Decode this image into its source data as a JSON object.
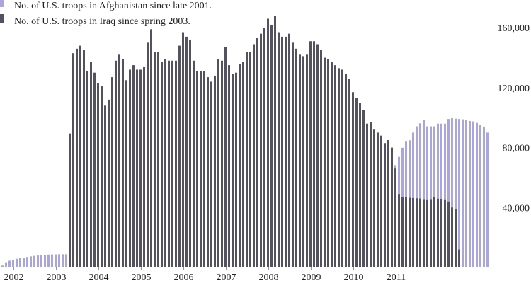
{
  "chart_data": {
    "type": "bar",
    "title": "",
    "xlabel": "",
    "ylabel": "",
    "ylim": [
      0,
      170000
    ],
    "y_ticks": [
      40000,
      80000,
      120000,
      160000
    ],
    "y_tick_labels": [
      "40,000",
      "80,000",
      "120,000",
      "160,000"
    ],
    "x_tick_labels": [
      "2002",
      "2003",
      "2004",
      "2005",
      "2006",
      "2007",
      "2008",
      "2009",
      "2010",
      "2011"
    ],
    "x_start": "2001-10",
    "legend_position": "top-left",
    "grid": false,
    "series": [
      {
        "name": "No. of U.S. troops in Afghanistan since late 2001.",
        "color": "#a9a6dc",
        "values": [
          1300,
          3000,
          4500,
          5200,
          5800,
          6200,
          6600,
          7000,
          7400,
          7700,
          8000,
          8200,
          8500,
          8600,
          8700,
          8700,
          8800,
          8800,
          8800,
          8900,
          9000,
          9100,
          9200,
          9300,
          9400,
          9600,
          9700,
          10000,
          10300,
          11000,
          11500,
          12000,
          12500,
          13000,
          13500,
          14000,
          17500,
          17300,
          17000,
          16800,
          16300,
          15800,
          15600,
          15800,
          16000,
          16200,
          16400,
          16600,
          17300,
          17600,
          17800,
          17400,
          17200,
          17000,
          17000,
          16900,
          16700,
          16800,
          17200,
          18500,
          20000,
          20200,
          20600,
          20800,
          20600,
          20200,
          19800,
          19700,
          19800,
          20400,
          20800,
          21400,
          22800,
          24500,
          24900,
          24200,
          24000,
          23800,
          23600,
          23800,
          23700,
          23500,
          24200,
          24000,
          24800,
          26300,
          28100,
          29800,
          31000,
          31500,
          31100,
          30500,
          31200,
          31400,
          31000,
          31100,
          30500,
          29900,
          30300,
          31500,
          34000,
          38000,
          47000,
          54000,
          58600,
          62000,
          62900,
          63200,
          65000,
          66300,
          68000,
          68300,
          73800,
          79900,
          84000,
          84900,
          90000,
          94200,
          96200,
          98600,
          94200,
          94200,
          94200,
          96000,
          96000,
          96000,
          99100,
          99600,
          99300,
          99100,
          98900,
          98400,
          97800,
          97500,
          96500,
          95000,
          94000,
          90000
        ]
      },
      {
        "name": "No. of U.S. troops in Iraq since spring 2003.",
        "color": "#55525f",
        "values": [
          null,
          null,
          null,
          null,
          null,
          null,
          null,
          null,
          null,
          null,
          null,
          null,
          null,
          null,
          null,
          null,
          null,
          null,
          null,
          89400,
          143000,
          146000,
          148000,
          145000,
          131000,
          137000,
          130000,
          123000,
          121000,
          108000,
          112000,
          127000,
          138000,
          142000,
          139000,
          125000,
          132000,
          135000,
          132000,
          132000,
          134000,
          150000,
          159000,
          144000,
          144000,
          137000,
          139000,
          138000,
          138000,
          138000,
          148000,
          157000,
          154000,
          152000,
          138000,
          131000,
          131000,
          131000,
          127000,
          124000,
          128000,
          139000,
          138000,
          147000,
          135000,
          129000,
          130000,
          136000,
          137000,
          144000,
          144000,
          149000,
          153000,
          156000,
          160000,
          166000,
          162000,
          168000,
          157000,
          154000,
          154000,
          156000,
          150000,
          146000,
          142000,
          141000,
          142000,
          151000,
          151000,
          149000,
          145000,
          140000,
          139000,
          137000,
          135000,
          133000,
          132000,
          129000,
          126000,
          117000,
          113000,
          110000,
          105000,
          96000,
          97000,
          92000,
          90000,
          88000,
          83000,
          85000,
          80000,
          66000,
          49000,
          47000,
          47000,
          46500,
          46300,
          46200,
          46000,
          45600,
          45400,
          45600,
          47000,
          45900,
          45800,
          45400,
          44000,
          40000,
          39000,
          12000
        ]
      }
    ]
  }
}
